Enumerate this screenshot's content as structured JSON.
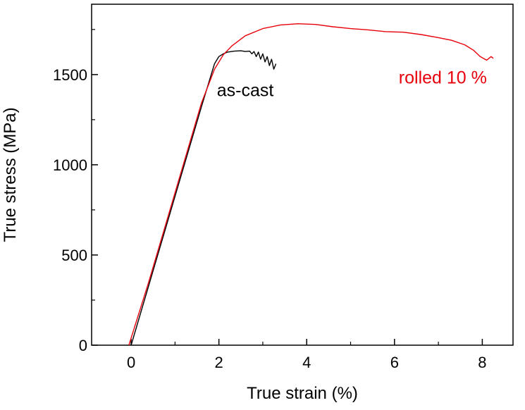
{
  "chart_data": {
    "type": "line",
    "title": "",
    "xlabel": "True strain (%)",
    "ylabel": "True stress (MPa)",
    "xlim": [
      -0.9,
      8.7
    ],
    "ylim": [
      0,
      1890
    ],
    "xticks": [
      0,
      2,
      4,
      6,
      8
    ],
    "yticks": [
      0,
      500,
      1000,
      1500
    ],
    "xtick_labels": [
      "0",
      "2",
      "4",
      "6",
      "8"
    ],
    "ytick_labels": [
      "0",
      "500",
      "1000",
      "1500"
    ],
    "grid": false,
    "legend": "none",
    "series": [
      {
        "name": "as-cast",
        "color": "#000000",
        "label_position": [
          2.6,
          1380
        ],
        "x": [
          0.0,
          0.4,
          0.8,
          1.2,
          1.6,
          1.9,
          2.0,
          2.1,
          2.2,
          2.35,
          2.5,
          2.6,
          2.7,
          2.75,
          2.8,
          2.85,
          2.9,
          2.95,
          3.0,
          3.05,
          3.1,
          3.15,
          3.2,
          3.25,
          3.3
        ],
        "y": [
          0,
          330,
          660,
          990,
          1320,
          1560,
          1600,
          1615,
          1625,
          1630,
          1632,
          1628,
          1630,
          1615,
          1628,
          1600,
          1625,
          1585,
          1615,
          1570,
          1600,
          1550,
          1585,
          1530,
          1560
        ]
      },
      {
        "name": "rolled 10 %",
        "color": "#e8000b",
        "label_position": [
          7.1,
          1450
        ],
        "x": [
          -0.05,
          0.4,
          0.8,
          1.2,
          1.6,
          1.9,
          2.1,
          2.3,
          2.6,
          3.0,
          3.4,
          3.8,
          4.2,
          4.6,
          5.0,
          5.4,
          5.8,
          6.2,
          6.6,
          7.0,
          7.3,
          7.6,
          7.8,
          7.95,
          8.1,
          8.2,
          8.25
        ],
        "y": [
          0,
          350,
          680,
          1010,
          1340,
          1530,
          1610,
          1660,
          1715,
          1755,
          1775,
          1782,
          1778,
          1765,
          1755,
          1748,
          1738,
          1735,
          1722,
          1705,
          1690,
          1665,
          1635,
          1600,
          1580,
          1600,
          1590
        ]
      }
    ]
  }
}
